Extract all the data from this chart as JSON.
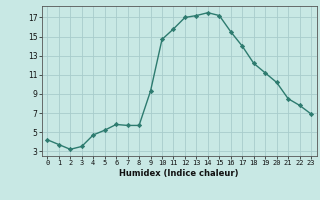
{
  "x": [
    0,
    1,
    2,
    3,
    4,
    5,
    6,
    7,
    8,
    9,
    10,
    11,
    12,
    13,
    14,
    15,
    16,
    17,
    18,
    19,
    20,
    21,
    22,
    23
  ],
  "y": [
    4.2,
    3.7,
    3.2,
    3.5,
    4.7,
    5.2,
    5.8,
    5.7,
    5.7,
    9.3,
    14.7,
    15.8,
    17.0,
    17.2,
    17.5,
    17.2,
    15.5,
    14.0,
    12.2,
    11.2,
    10.2,
    8.5,
    7.8,
    6.9
  ],
  "bg_color": "#c8e8e4",
  "line_color": "#2d7b6f",
  "marker_color": "#2d7b6f",
  "grid_color": "#a8cccc",
  "xlabel": "Humidex (Indice chaleur)",
  "yticks": [
    3,
    5,
    7,
    9,
    11,
    13,
    15,
    17
  ],
  "xtick_labels": [
    "0",
    "1",
    "2",
    "3",
    "4",
    "5",
    "6",
    "7",
    "8",
    "9",
    "10",
    "11",
    "12",
    "13",
    "14",
    "15",
    "16",
    "17",
    "18",
    "19",
    "20",
    "21",
    "22",
    "23"
  ],
  "xticks": [
    0,
    1,
    2,
    3,
    4,
    5,
    6,
    7,
    8,
    9,
    10,
    11,
    12,
    13,
    14,
    15,
    16,
    17,
    18,
    19,
    20,
    21,
    22,
    23
  ],
  "ylim": [
    2.5,
    18.2
  ],
  "xlim": [
    -0.5,
    23.5
  ]
}
